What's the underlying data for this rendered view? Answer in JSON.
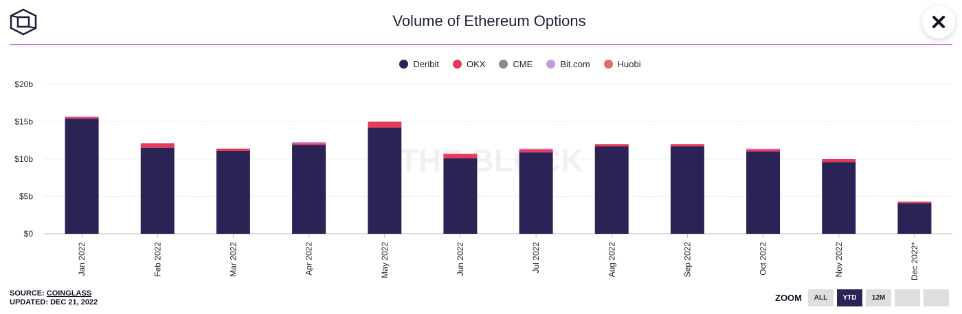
{
  "header": {
    "title": "Volume of Ethereum Options",
    "logo_icon": "the-block-cube-logo-icon",
    "close_icon": "close-icon"
  },
  "footer": {
    "source_label": "SOURCE: ",
    "source_name": "COINGLASS",
    "updated": "UPDATED: DEC 21, 2022"
  },
  "zoom": {
    "label": "ZOOM",
    "buttons": [
      "ALL",
      "YTD",
      "12M",
      "",
      ""
    ],
    "active": "YTD"
  },
  "watermark": "THE BLOCK",
  "chart_data": {
    "type": "bar",
    "stacked": true,
    "title": "Volume of Ethereum Options",
    "xlabel": "",
    "ylabel": "",
    "ylim": [
      0,
      20
    ],
    "yticks": [
      "$0",
      "$5b",
      "$10b",
      "$15b",
      "$20b"
    ],
    "ytick_values": [
      0,
      5,
      10,
      15,
      20
    ],
    "grid": true,
    "legend_position": "top",
    "categories": [
      "Jan 2022",
      "Feb 2022",
      "Mar 2022",
      "Apr 2022",
      "May 2022",
      "Jun 2022",
      "Jul 2022",
      "Aug 2022",
      "Sep 2022",
      "Oct 2022",
      "Nov 2022",
      "Dec 2022*"
    ],
    "series": [
      {
        "name": "Deribit",
        "color": "#2a2356",
        "values": [
          15.4,
          11.5,
          11.1,
          11.9,
          14.2,
          10.1,
          10.9,
          11.7,
          11.7,
          11.0,
          9.6,
          4.1
        ]
      },
      {
        "name": "OKX",
        "color": "#e8395c",
        "values": [
          0.2,
          0.6,
          0.3,
          0.2,
          0.8,
          0.6,
          0.4,
          0.3,
          0.3,
          0.3,
          0.4,
          0.2
        ]
      },
      {
        "name": "CME",
        "color": "#8a8a92",
        "values": [
          0.0,
          0.0,
          0.0,
          0.0,
          0.0,
          0.0,
          0.0,
          0.0,
          0.0,
          0.0,
          0.0,
          0.0
        ]
      },
      {
        "name": "Bit.com",
        "color": "#c59be0",
        "values": [
          0.1,
          0.0,
          0.0,
          0.2,
          0.0,
          0.0,
          0.1,
          0.0,
          0.0,
          0.1,
          0.0,
          0.0
        ]
      },
      {
        "name": "Huobi",
        "color": "#e36b6b",
        "values": [
          0.0,
          0.0,
          0.0,
          0.0,
          0.0,
          0.0,
          0.0,
          0.0,
          0.0,
          0.0,
          0.0,
          0.0
        ]
      }
    ]
  }
}
